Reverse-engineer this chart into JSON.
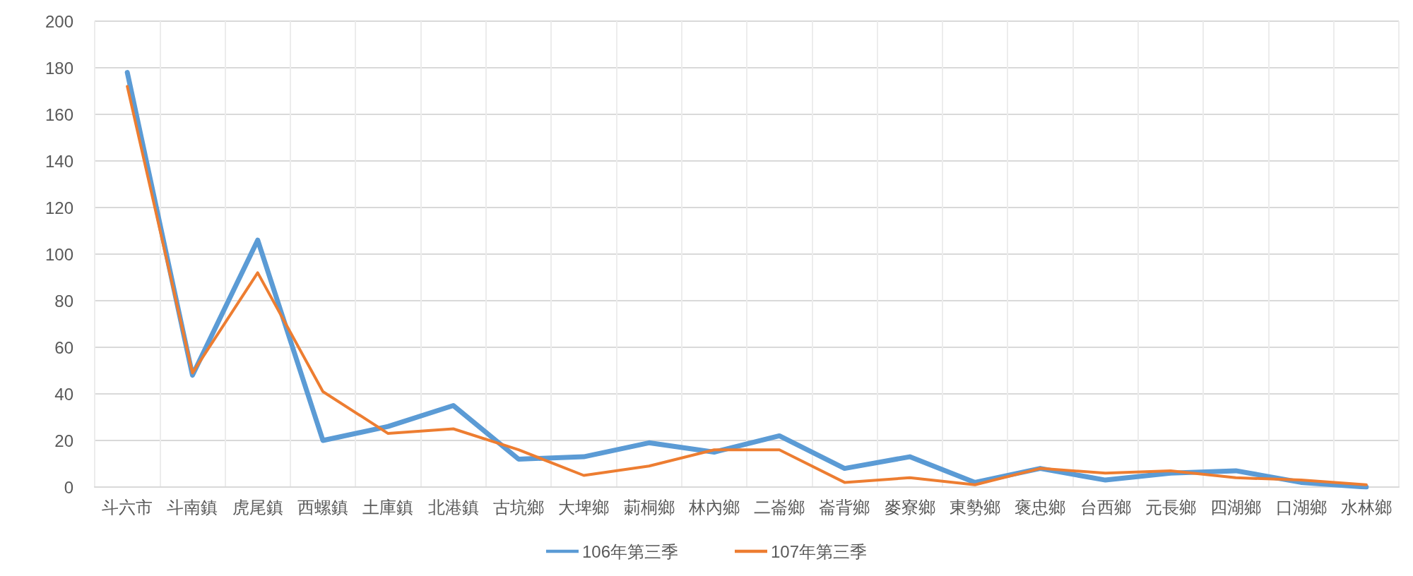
{
  "chart_data": {
    "type": "line",
    "categories": [
      "斗六市",
      "斗南鎮",
      "虎尾鎮",
      "西螺鎮",
      "土庫鎮",
      "北港鎮",
      "古坑鄉",
      "大埤鄉",
      "莿桐鄉",
      "林內鄉",
      "二崙鄉",
      "崙背鄉",
      "麥寮鄉",
      "東勢鄉",
      "褒忠鄉",
      "台西鄉",
      "元長鄉",
      "四湖鄉",
      "口湖鄉",
      "水林鄉"
    ],
    "series": [
      {
        "name": "106年第三季",
        "color": "#5b9bd5",
        "values": [
          178,
          48,
          106,
          20,
          26,
          35,
          12,
          13,
          19,
          15,
          22,
          8,
          13,
          2,
          8,
          3,
          6,
          7,
          2,
          0
        ]
      },
      {
        "name": "107年第三季",
        "color": "#ed7d31",
        "values": [
          172,
          49,
          92,
          41,
          23,
          25,
          16,
          5,
          9,
          16,
          16,
          2,
          4,
          1,
          8,
          6,
          7,
          4,
          3,
          1
        ]
      }
    ],
    "ylim": [
      0,
      200
    ],
    "yticks": [
      0,
      20,
      40,
      60,
      80,
      100,
      120,
      140,
      160,
      180,
      200
    ],
    "grid": true,
    "legend": "bottom",
    "marker": "none",
    "line_style": "solid"
  }
}
